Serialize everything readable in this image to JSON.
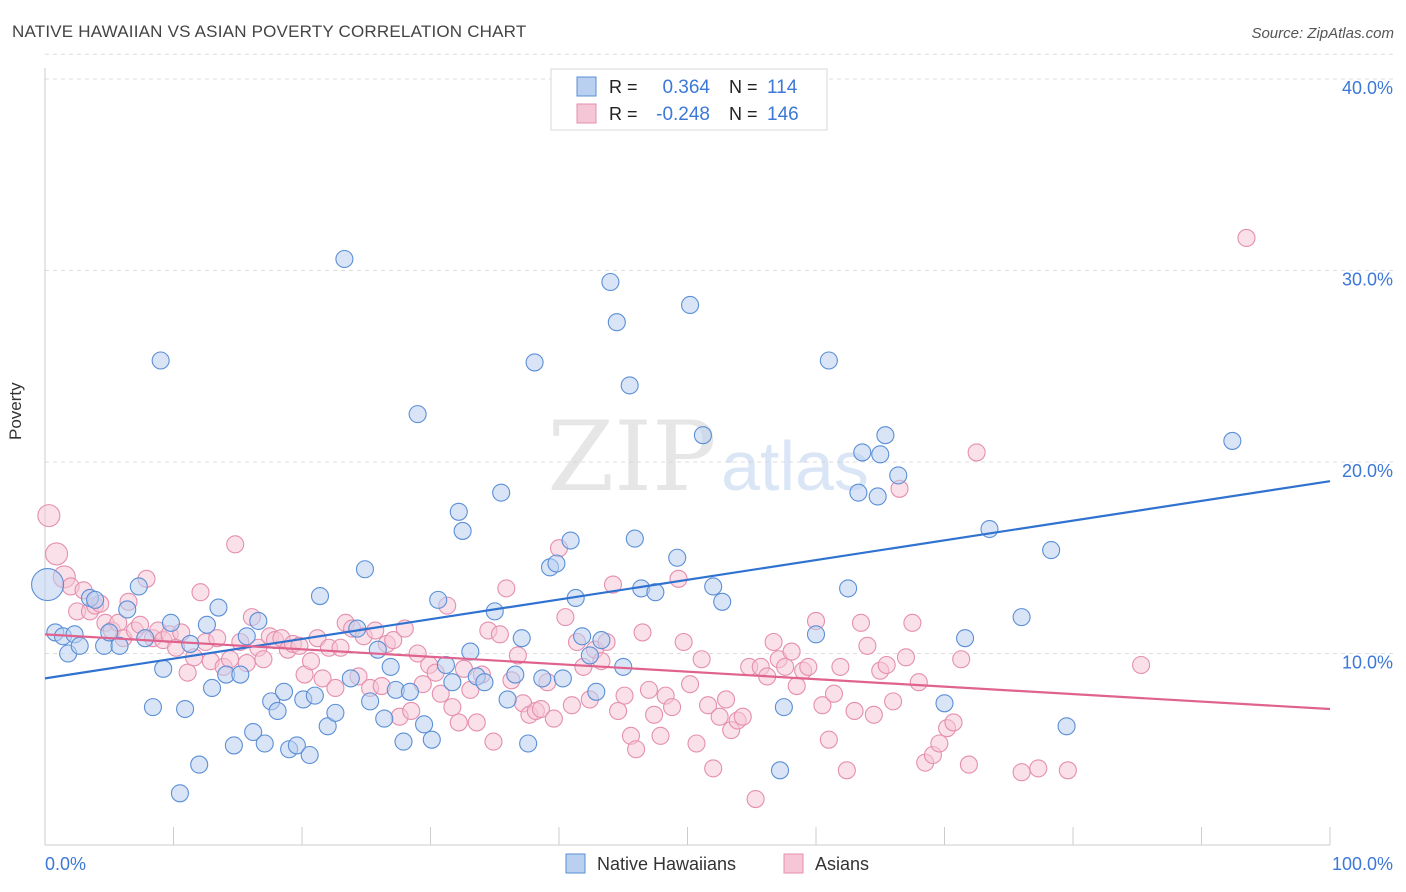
{
  "header": {
    "title": "NATIVE HAWAIIAN VS ASIAN POVERTY CORRELATION CHART",
    "source": "Source: ZipAtlas.com"
  },
  "watermark": {
    "zip": "ZIP",
    "atlas": "atlas"
  },
  "colors": {
    "blue": "#5b8fd6",
    "blue_fill": "#b9d0f0",
    "blue_line": "#2f72d0",
    "pink": "#e58fae",
    "pink_fill": "#f5c6d6",
    "pink_line": "#e0628e",
    "tick_text": "#3c78d8",
    "grid": "#dddddd"
  },
  "legend_top": {
    "rows": [
      {
        "r_label": "R =",
        "r_value": "0.364",
        "n_label": "N =",
        "n_value": "114"
      },
      {
        "r_label": "R =",
        "r_value": "-0.248",
        "n_label": "N =",
        "n_value": "146"
      }
    ]
  },
  "legend_bottom": {
    "items": [
      "Native Hawaiians",
      "Asians"
    ]
  },
  "chart_data": {
    "type": "scatter",
    "title": "NATIVE HAWAIIAN VS ASIAN POVERTY CORRELATION CHART",
    "xlabel": "",
    "ylabel": "Poverty",
    "xlim": [
      0,
      100
    ],
    "ylim": [
      0,
      42
    ],
    "x_tick_labels": [
      "0.0%",
      "100.0%"
    ],
    "y_ticks": [
      10,
      20,
      30,
      40
    ],
    "y_tick_labels": [
      "10.0%",
      "20.0%",
      "30.0%",
      "40.0%"
    ],
    "grid": true,
    "legend_position": "top-center",
    "series": [
      {
        "name": "Native Hawaiians",
        "r": 0.364,
        "n": 114,
        "trend": {
          "x": [
            0,
            100
          ],
          "y": [
            8.7,
            19.0
          ]
        },
        "points": [
          [
            0.2,
            13.6
          ],
          [
            0.8,
            11.1
          ],
          [
            1.4,
            10.9
          ],
          [
            1.8,
            10.0
          ],
          [
            2.3,
            11.0
          ],
          [
            2.7,
            10.4
          ],
          [
            3.5,
            12.9
          ],
          [
            3.9,
            12.8
          ],
          [
            4.6,
            10.4
          ],
          [
            5.0,
            11.1
          ],
          [
            5.8,
            10.4
          ],
          [
            6.4,
            12.3
          ],
          [
            7.3,
            13.5
          ],
          [
            7.8,
            10.8
          ],
          [
            8.4,
            7.2
          ],
          [
            9.0,
            25.3
          ],
          [
            9.2,
            9.2
          ],
          [
            9.8,
            11.6
          ],
          [
            10.5,
            2.7
          ],
          [
            10.9,
            7.1
          ],
          [
            11.3,
            10.5
          ],
          [
            12.0,
            4.2
          ],
          [
            12.6,
            11.5
          ],
          [
            13.0,
            8.2
          ],
          [
            13.5,
            12.4
          ],
          [
            14.1,
            8.9
          ],
          [
            14.7,
            5.2
          ],
          [
            15.2,
            8.9
          ],
          [
            15.7,
            10.9
          ],
          [
            16.2,
            5.9
          ],
          [
            16.6,
            11.7
          ],
          [
            17.1,
            5.3
          ],
          [
            17.6,
            7.5
          ],
          [
            18.1,
            7.0
          ],
          [
            18.6,
            8.0
          ],
          [
            19.0,
            5.0
          ],
          [
            19.6,
            5.2
          ],
          [
            20.1,
            7.6
          ],
          [
            20.6,
            4.7
          ],
          [
            21.0,
            7.8
          ],
          [
            21.4,
            13.0
          ],
          [
            22.0,
            6.2
          ],
          [
            22.6,
            6.9
          ],
          [
            23.3,
            30.6
          ],
          [
            23.8,
            8.7
          ],
          [
            24.3,
            11.3
          ],
          [
            24.9,
            14.4
          ],
          [
            25.3,
            7.5
          ],
          [
            25.9,
            10.2
          ],
          [
            26.4,
            6.6
          ],
          [
            26.9,
            9.3
          ],
          [
            27.3,
            8.1
          ],
          [
            27.9,
            5.4
          ],
          [
            28.4,
            8.0
          ],
          [
            29.0,
            22.5
          ],
          [
            29.5,
            6.3
          ],
          [
            30.1,
            5.5
          ],
          [
            30.6,
            12.8
          ],
          [
            31.2,
            9.4
          ],
          [
            31.7,
            8.5
          ],
          [
            32.2,
            17.4
          ],
          [
            32.5,
            16.4
          ],
          [
            33.1,
            10.1
          ],
          [
            33.6,
            8.8
          ],
          [
            34.2,
            8.5
          ],
          [
            35.0,
            12.2
          ],
          [
            35.5,
            18.4
          ],
          [
            36.0,
            7.6
          ],
          [
            36.6,
            8.9
          ],
          [
            37.1,
            10.8
          ],
          [
            37.6,
            5.3
          ],
          [
            38.1,
            25.2
          ],
          [
            38.7,
            8.7
          ],
          [
            39.3,
            14.5
          ],
          [
            39.8,
            14.7
          ],
          [
            40.3,
            8.7
          ],
          [
            40.9,
            15.9
          ],
          [
            41.3,
            12.9
          ],
          [
            41.8,
            10.9
          ],
          [
            42.4,
            9.9
          ],
          [
            42.9,
            8.0
          ],
          [
            43.3,
            10.7
          ],
          [
            44.0,
            29.4
          ],
          [
            44.5,
            27.3
          ],
          [
            45.0,
            9.3
          ],
          [
            45.5,
            24.0
          ],
          [
            45.9,
            16.0
          ],
          [
            46.4,
            13.4
          ],
          [
            47.5,
            13.2
          ],
          [
            49.2,
            15.0
          ],
          [
            50.2,
            28.2
          ],
          [
            51.2,
            21.4
          ],
          [
            52.0,
            13.5
          ],
          [
            52.7,
            12.7
          ],
          [
            57.2,
            3.9
          ],
          [
            57.5,
            7.2
          ],
          [
            60.0,
            11.0
          ],
          [
            61.0,
            25.3
          ],
          [
            62.5,
            13.4
          ],
          [
            63.3,
            18.4
          ],
          [
            63.6,
            20.5
          ],
          [
            64.8,
            18.2
          ],
          [
            65.0,
            20.4
          ],
          [
            65.4,
            21.4
          ],
          [
            66.4,
            19.3
          ],
          [
            70.0,
            7.4
          ],
          [
            71.6,
            10.8
          ],
          [
            73.5,
            16.5
          ],
          [
            76.0,
            11.9
          ],
          [
            78.3,
            15.4
          ],
          [
            79.5,
            6.2
          ],
          [
            92.4,
            21.1
          ]
        ]
      },
      {
        "name": "Asians",
        "r": -0.248,
        "n": 146,
        "trend": {
          "x": [
            0,
            100
          ],
          "y": [
            11.0,
            7.1
          ]
        },
        "points": [
          [
            0.3,
            17.2
          ],
          [
            0.9,
            15.2
          ],
          [
            1.5,
            14.0
          ],
          [
            2.0,
            13.5
          ],
          [
            2.5,
            12.2
          ],
          [
            3.0,
            13.3
          ],
          [
            3.5,
            12.2
          ],
          [
            3.9,
            12.5
          ],
          [
            4.3,
            12.6
          ],
          [
            4.7,
            11.6
          ],
          [
            5.2,
            11.2
          ],
          [
            5.7,
            11.6
          ],
          [
            6.1,
            10.8
          ],
          [
            6.5,
            12.7
          ],
          [
            7.0,
            11.2
          ],
          [
            7.4,
            11.5
          ],
          [
            7.9,
            13.9
          ],
          [
            8.4,
            10.8
          ],
          [
            8.8,
            11.2
          ],
          [
            9.2,
            10.7
          ],
          [
            9.7,
            11.0
          ],
          [
            10.2,
            10.3
          ],
          [
            10.6,
            11.1
          ],
          [
            11.1,
            9.0
          ],
          [
            11.6,
            9.8
          ],
          [
            12.1,
            13.2
          ],
          [
            12.5,
            10.6
          ],
          [
            12.9,
            9.6
          ],
          [
            13.4,
            10.8
          ],
          [
            13.9,
            9.3
          ],
          [
            14.4,
            9.7
          ],
          [
            14.8,
            15.7
          ],
          [
            15.2,
            10.6
          ],
          [
            15.7,
            9.5
          ],
          [
            16.1,
            11.9
          ],
          [
            16.6,
            10.3
          ],
          [
            17.0,
            9.7
          ],
          [
            17.5,
            10.9
          ],
          [
            17.9,
            10.7
          ],
          [
            18.4,
            10.8
          ],
          [
            18.9,
            10.2
          ],
          [
            19.3,
            10.5
          ],
          [
            19.8,
            10.4
          ],
          [
            20.2,
            8.9
          ],
          [
            20.7,
            9.6
          ],
          [
            21.2,
            10.8
          ],
          [
            21.6,
            8.7
          ],
          [
            22.1,
            10.3
          ],
          [
            22.6,
            8.2
          ],
          [
            23.0,
            10.3
          ],
          [
            23.4,
            11.6
          ],
          [
            23.9,
            11.3
          ],
          [
            24.4,
            8.8
          ],
          [
            24.8,
            10.9
          ],
          [
            25.3,
            8.2
          ],
          [
            25.7,
            11.2
          ],
          [
            26.2,
            8.3
          ],
          [
            26.6,
            10.5
          ],
          [
            27.1,
            10.7
          ],
          [
            27.6,
            6.7
          ],
          [
            28.0,
            11.3
          ],
          [
            28.5,
            7.0
          ],
          [
            29.0,
            10.0
          ],
          [
            29.4,
            8.4
          ],
          [
            29.9,
            9.4
          ],
          [
            30.4,
            9.0
          ],
          [
            30.8,
            7.9
          ],
          [
            31.3,
            12.5
          ],
          [
            31.7,
            7.2
          ],
          [
            32.2,
            6.4
          ],
          [
            32.6,
            9.2
          ],
          [
            33.1,
            8.1
          ],
          [
            33.6,
            6.4
          ],
          [
            34.0,
            8.9
          ],
          [
            34.5,
            11.2
          ],
          [
            34.9,
            5.4
          ],
          [
            35.4,
            11.0
          ],
          [
            35.9,
            13.4
          ],
          [
            36.3,
            8.6
          ],
          [
            36.8,
            9.9
          ],
          [
            37.2,
            7.4
          ],
          [
            37.7,
            6.8
          ],
          [
            38.2,
            7.0
          ],
          [
            38.6,
            7.1
          ],
          [
            39.1,
            8.5
          ],
          [
            39.6,
            6.6
          ],
          [
            40.0,
            15.5
          ],
          [
            40.5,
            11.9
          ],
          [
            41.0,
            7.3
          ],
          [
            41.4,
            10.6
          ],
          [
            41.9,
            9.3
          ],
          [
            42.4,
            7.6
          ],
          [
            42.8,
            10.2
          ],
          [
            43.3,
            9.6
          ],
          [
            43.7,
            10.6
          ],
          [
            44.2,
            13.6
          ],
          [
            44.6,
            7.0
          ],
          [
            45.1,
            7.8
          ],
          [
            45.6,
            5.7
          ],
          [
            46.0,
            5.0
          ],
          [
            46.5,
            11.1
          ],
          [
            47.0,
            8.1
          ],
          [
            47.4,
            6.8
          ],
          [
            47.9,
            5.7
          ],
          [
            48.3,
            7.8
          ],
          [
            48.8,
            7.2
          ],
          [
            49.3,
            13.9
          ],
          [
            49.7,
            10.6
          ],
          [
            50.2,
            8.4
          ],
          [
            50.7,
            5.3
          ],
          [
            51.1,
            9.7
          ],
          [
            51.6,
            7.3
          ],
          [
            52.0,
            4.0
          ],
          [
            52.5,
            6.7
          ],
          [
            53.0,
            7.6
          ],
          [
            53.4,
            6.0
          ],
          [
            53.9,
            6.5
          ],
          [
            54.3,
            6.7
          ],
          [
            54.8,
            9.3
          ],
          [
            55.3,
            2.4
          ],
          [
            55.7,
            9.3
          ],
          [
            56.2,
            8.8
          ],
          [
            56.7,
            10.6
          ],
          [
            57.1,
            9.7
          ],
          [
            57.6,
            9.3
          ],
          [
            58.1,
            10.1
          ],
          [
            58.5,
            8.3
          ],
          [
            59.0,
            9.1
          ],
          [
            59.4,
            9.3
          ],
          [
            60.0,
            11.7
          ],
          [
            60.5,
            7.3
          ],
          [
            61.0,
            5.5
          ],
          [
            61.4,
            7.9
          ],
          [
            61.9,
            9.3
          ],
          [
            62.4,
            3.9
          ],
          [
            63.0,
            7.0
          ],
          [
            63.5,
            11.6
          ],
          [
            64.0,
            10.4
          ],
          [
            64.5,
            6.8
          ],
          [
            65.0,
            9.1
          ],
          [
            65.5,
            9.4
          ],
          [
            66.0,
            7.5
          ],
          [
            66.5,
            18.6
          ],
          [
            67.0,
            9.8
          ],
          [
            67.5,
            11.6
          ],
          [
            68.0,
            8.5
          ],
          [
            68.5,
            4.3
          ],
          [
            69.1,
            4.7
          ],
          [
            69.6,
            5.3
          ],
          [
            70.2,
            6.1
          ],
          [
            70.7,
            6.4
          ],
          [
            71.3,
            9.7
          ],
          [
            71.9,
            4.2
          ],
          [
            72.5,
            20.5
          ],
          [
            76.0,
            3.8
          ],
          [
            77.3,
            4.0
          ],
          [
            79.6,
            3.9
          ],
          [
            85.3,
            9.4
          ],
          [
            93.5,
            31.7
          ]
        ]
      }
    ]
  }
}
